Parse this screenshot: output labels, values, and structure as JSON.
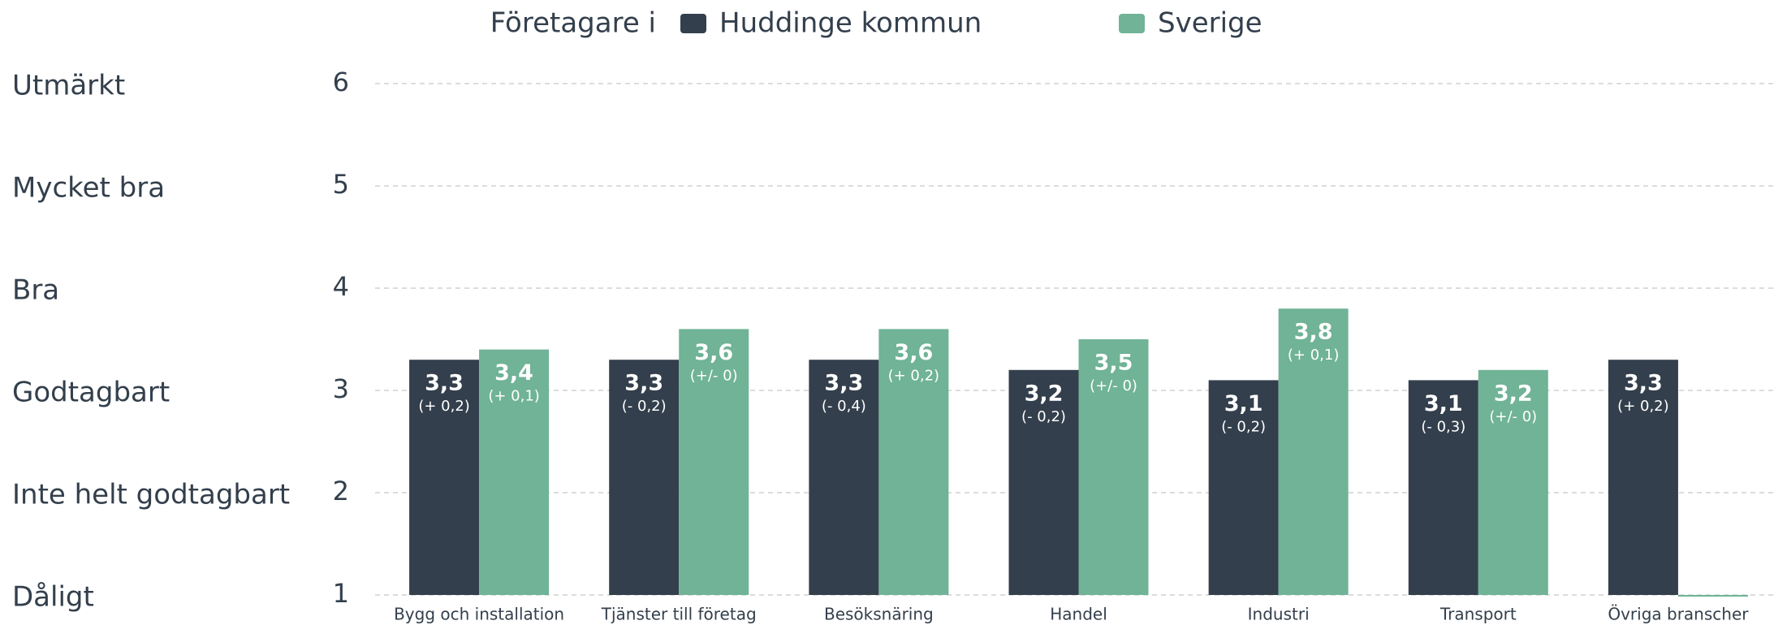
{
  "chart_data": {
    "type": "bar",
    "legend_title": "Företagare i",
    "categories": [
      "Bygg och installation",
      "Tjänster till företag",
      "Besöksnäring",
      "Handel",
      "Industri",
      "Transport",
      "Övriga branscher"
    ],
    "series": [
      {
        "name": "Huddinge kommun",
        "color": "#333f4c",
        "values": [
          3.3,
          3.3,
          3.3,
          3.2,
          3.1,
          3.1,
          3.3
        ],
        "value_labels": [
          "3,3",
          "3,3",
          "3,3",
          "3,2",
          "3,1",
          "3,1",
          "3,3"
        ],
        "deltas": [
          "(+ 0,2)",
          "(- 0,2)",
          "(- 0,4)",
          "(- 0,2)",
          "(- 0,2)",
          "(- 0,3)",
          "(+ 0,2)"
        ]
      },
      {
        "name": "Sverige",
        "color": "#70b396",
        "values": [
          3.4,
          3.6,
          3.6,
          3.5,
          3.8,
          3.2,
          1
        ],
        "value_labels": [
          "3,4",
          "3,6",
          "3,6",
          "3,5",
          "3,8",
          "3,2",
          null
        ],
        "deltas": [
          "(+ 0,1)",
          "(+/- 0)",
          "(+ 0,2)",
          "(+/- 0)",
          "(+ 0,1)",
          "(+/- 0)",
          null
        ]
      }
    ],
    "ylim": [
      1,
      6
    ],
    "yticks": [
      1,
      2,
      3,
      4,
      5,
      6
    ],
    "ytick_names": [
      "Dåligt",
      "Inte helt godtagbart",
      "Godtagbart",
      "Bra",
      "Mycket bra",
      "Utmärkt"
    ],
    "grid": true
  }
}
